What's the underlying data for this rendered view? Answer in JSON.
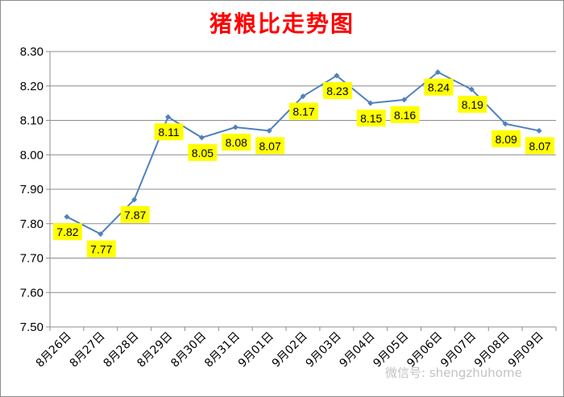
{
  "chart_data": {
    "type": "line",
    "title": "猪粮比走势图",
    "categories": [
      "8月26日",
      "8月27日",
      "8月28日",
      "8月29日",
      "8月30日",
      "8月31日",
      "9月01日",
      "9月02日",
      "9月03日",
      "9月04日",
      "9月05日",
      "9月06日",
      "9月07日",
      "9月08日",
      "9月09日"
    ],
    "series": [
      {
        "values": [
          7.82,
          7.77,
          7.87,
          8.11,
          8.05,
          8.08,
          8.07,
          8.17,
          8.23,
          8.15,
          8.16,
          8.24,
          8.19,
          8.09,
          8.07
        ]
      }
    ],
    "data_labels": [
      "7.82",
      "7.77",
      "7.87",
      "8.11",
      "8.05",
      "8.08",
      "8.07",
      "8.17",
      "8.23",
      "8.15",
      "8.16",
      "8.24",
      "8.19",
      "8.09",
      "8.07"
    ],
    "ylim": [
      7.5,
      8.3
    ],
    "yticks": [
      "7.50",
      "7.60",
      "7.70",
      "7.80",
      "7.90",
      "8.00",
      "8.10",
      "8.20",
      "8.30"
    ],
    "xlabel": "",
    "ylabel": "",
    "grid": true,
    "line_color": "#4f81bd",
    "label_bg_color": "#ffff00",
    "title_color": "#ff0000"
  },
  "watermark": "微信号: shengzhuhome"
}
